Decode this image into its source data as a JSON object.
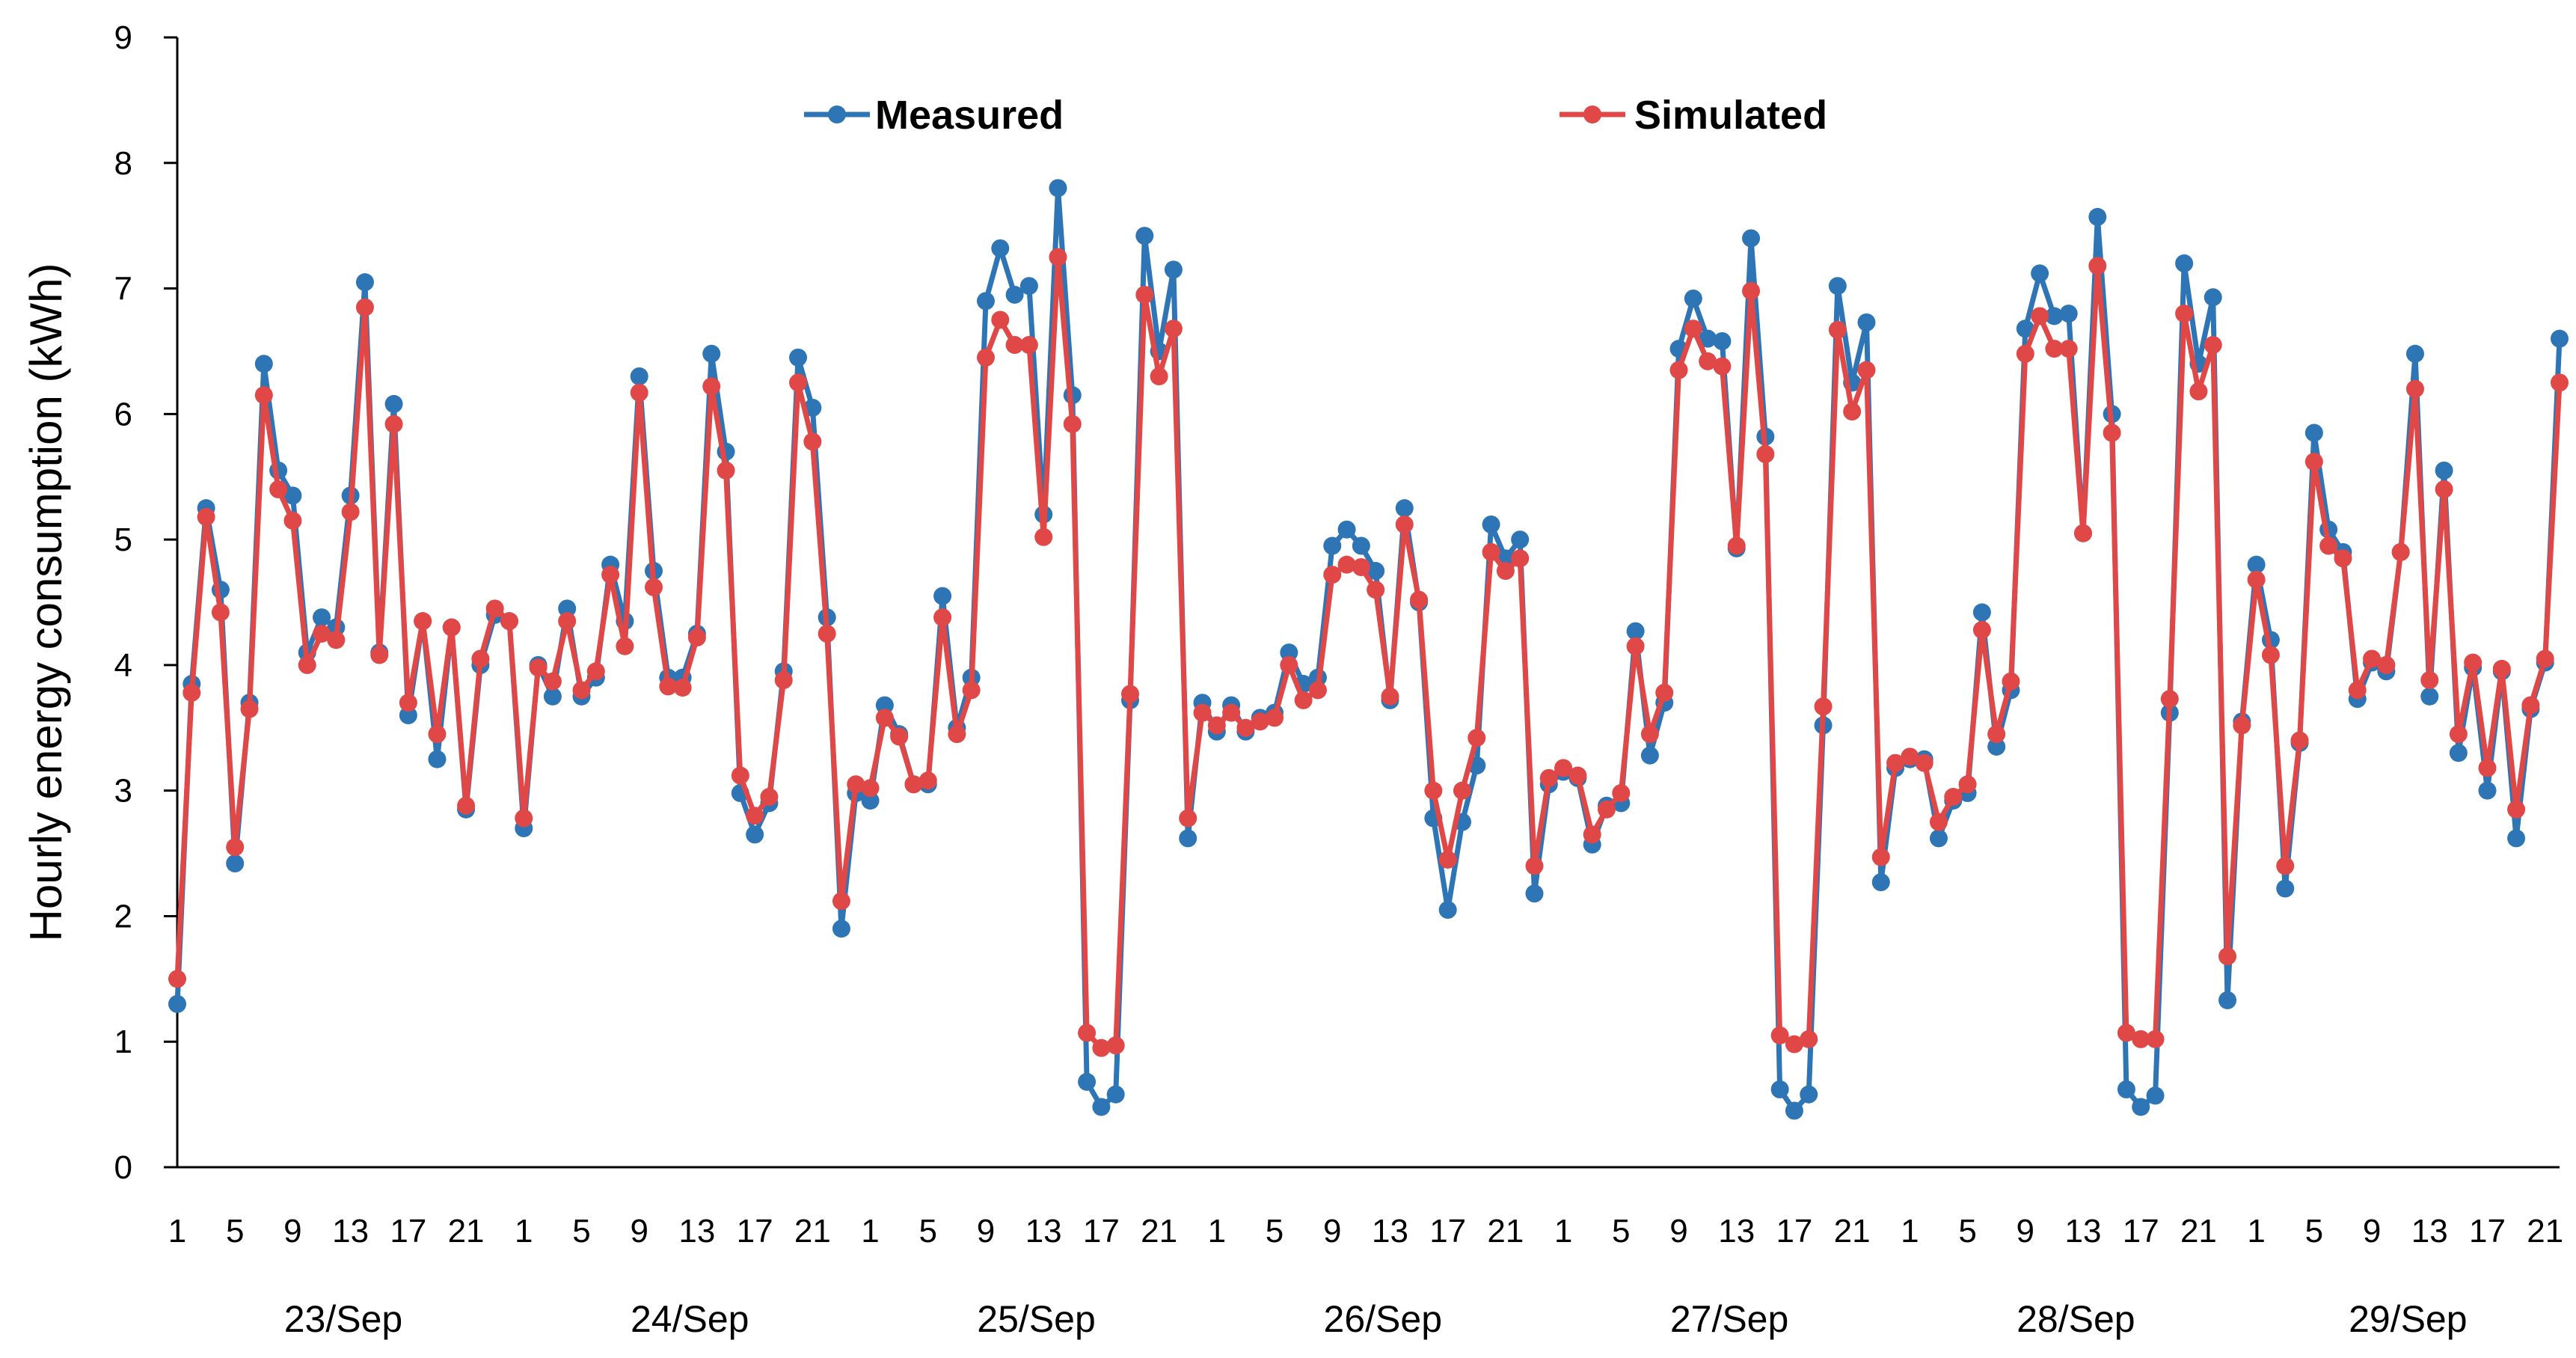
{
  "chart_data": {
    "type": "line",
    "title": "",
    "xlabel": "",
    "ylabel": "Hourly energy consumption (kWh)",
    "ylim": [
      0,
      9
    ],
    "yticks": [
      0,
      1,
      2,
      3,
      4,
      5,
      6,
      7,
      8,
      9
    ],
    "hours_per_day": 24,
    "hour_tick_labels": [
      "1",
      "5",
      "9",
      "13",
      "17",
      "21"
    ],
    "days": [
      "23/Sep",
      "24/Sep",
      "25/Sep",
      "26/Sep",
      "27/Sep",
      "28/Sep",
      "29/Sep"
    ],
    "legend_position": "top",
    "series": [
      {
        "name": "Measured",
        "color": "#2E75B6",
        "values": [
          1.3,
          3.85,
          5.25,
          4.6,
          2.42,
          3.7,
          6.4,
          5.55,
          5.35,
          4.1,
          4.38,
          4.3,
          5.35,
          7.05,
          4.1,
          6.08,
          3.6,
          4.35,
          3.25,
          4.3,
          2.85,
          4.0,
          4.4,
          4.35,
          2.7,
          4.0,
          3.75,
          4.45,
          3.75,
          3.9,
          4.8,
          4.35,
          6.3,
          4.75,
          3.9,
          3.9,
          4.25,
          6.48,
          5.7,
          2.98,
          2.65,
          2.9,
          3.95,
          6.45,
          6.05,
          4.38,
          1.9,
          2.98,
          2.92,
          3.68,
          3.45,
          3.05,
          3.05,
          4.55,
          3.5,
          3.9,
          6.9,
          7.32,
          6.95,
          7.02,
          5.2,
          7.8,
          6.15,
          0.68,
          0.48,
          0.58,
          3.72,
          7.42,
          6.5,
          7.15,
          2.62,
          3.7,
          3.47,
          3.68,
          3.47,
          3.58,
          3.62,
          4.1,
          3.85,
          3.9,
          4.95,
          5.08,
          4.95,
          4.75,
          3.72,
          5.25,
          4.5,
          2.78,
          2.05,
          2.75,
          3.2,
          5.12,
          4.85,
          5.0,
          2.18,
          3.05,
          3.15,
          3.1,
          2.57,
          2.88,
          2.9,
          4.27,
          3.28,
          3.7,
          6.52,
          6.92,
          6.6,
          6.58,
          4.93,
          7.4,
          5.82,
          0.62,
          0.45,
          0.58,
          3.52,
          7.02,
          6.25,
          6.73,
          2.27,
          3.18,
          3.25,
          3.25,
          2.62,
          2.92,
          2.98,
          4.42,
          3.35,
          3.8,
          6.68,
          7.12,
          6.78,
          6.8,
          5.05,
          7.57,
          6.0,
          0.62,
          0.48,
          0.57,
          3.62,
          7.2,
          6.4,
          6.93,
          1.33,
          3.55,
          4.8,
          4.2,
          2.22,
          3.38,
          5.85,
          5.08,
          4.9,
          3.73,
          4.02,
          3.95,
          4.9,
          6.48,
          3.75,
          5.55,
          3.3,
          3.98,
          3.0,
          3.95,
          2.62,
          3.65,
          4.02,
          6.6
        ]
      },
      {
        "name": "Simulated",
        "color": "#E04848",
        "values": [
          1.5,
          3.78,
          5.18,
          4.42,
          2.55,
          3.65,
          6.15,
          5.4,
          5.15,
          4.0,
          4.25,
          4.2,
          5.22,
          6.85,
          4.08,
          5.92,
          3.7,
          4.35,
          3.45,
          4.3,
          2.88,
          4.05,
          4.45,
          4.35,
          2.78,
          3.98,
          3.87,
          4.35,
          3.8,
          3.95,
          4.72,
          4.15,
          6.17,
          4.62,
          3.83,
          3.82,
          4.22,
          6.22,
          5.55,
          3.12,
          2.8,
          2.95,
          3.88,
          6.25,
          5.78,
          4.25,
          2.12,
          3.05,
          3.02,
          3.58,
          3.43,
          3.05,
          3.08,
          4.38,
          3.45,
          3.8,
          6.45,
          6.75,
          6.55,
          6.55,
          5.02,
          7.25,
          5.92,
          1.07,
          0.95,
          0.97,
          3.77,
          6.95,
          6.3,
          6.68,
          2.78,
          3.62,
          3.52,
          3.62,
          3.5,
          3.55,
          3.58,
          4.0,
          3.72,
          3.8,
          4.72,
          4.8,
          4.78,
          4.6,
          3.75,
          5.12,
          4.52,
          3.0,
          2.45,
          3.0,
          3.42,
          4.9,
          4.75,
          4.85,
          2.4,
          3.1,
          3.18,
          3.12,
          2.65,
          2.85,
          2.98,
          4.15,
          3.45,
          3.78,
          6.35,
          6.68,
          6.42,
          6.38,
          4.95,
          6.98,
          5.68,
          1.05,
          0.98,
          1.02,
          3.67,
          6.67,
          6.02,
          6.35,
          2.47,
          3.22,
          3.27,
          3.22,
          2.75,
          2.95,
          3.05,
          4.28,
          3.45,
          3.87,
          6.48,
          6.78,
          6.52,
          6.52,
          5.05,
          7.18,
          5.85,
          1.07,
          1.02,
          1.02,
          3.73,
          6.8,
          6.18,
          6.55,
          1.68,
          3.52,
          4.68,
          4.08,
          2.4,
          3.4,
          5.62,
          4.95,
          4.85,
          3.8,
          4.05,
          4.0,
          4.9,
          6.2,
          3.88,
          5.4,
          3.45,
          4.02,
          3.18,
          3.97,
          2.85,
          3.68,
          4.05,
          6.25
        ]
      }
    ]
  }
}
